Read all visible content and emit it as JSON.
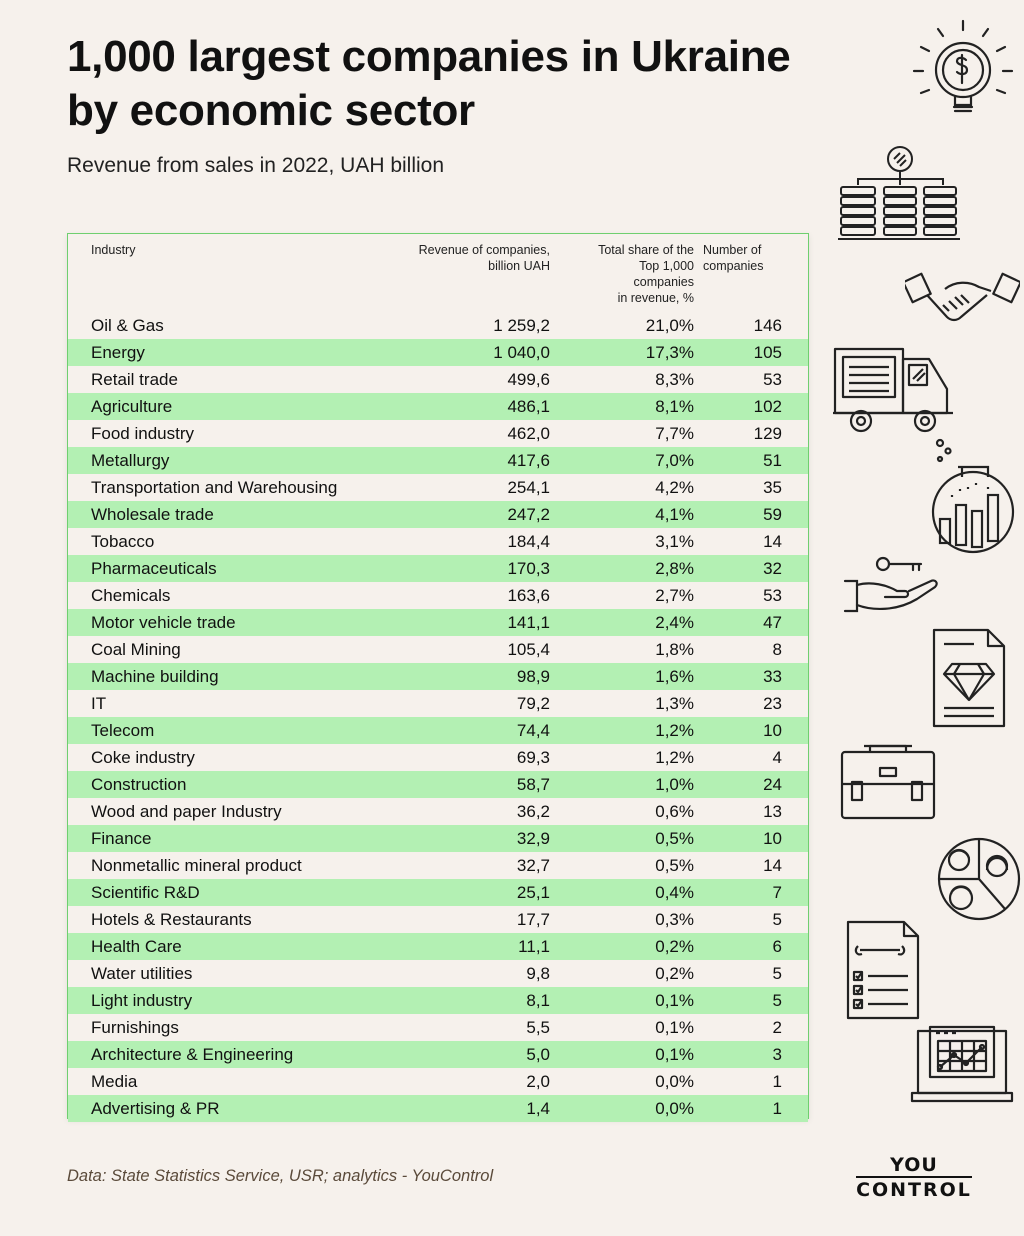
{
  "title": "1,000 largest companies in Ukraine by economic sector",
  "subtitle": "Revenue from sales in 2022, UAH billion",
  "table": {
    "headers": {
      "industry": "Industry",
      "revenue": "Revenue of companies, billion UAH",
      "share": "Total share of the Top 1,000 companies in revenue, %",
      "number": "Number of companies"
    },
    "rows": [
      {
        "industry": "Oil & Gas",
        "revenue": "1 259,2",
        "share": "21,0%",
        "number": "146"
      },
      {
        "industry": "Energy",
        "revenue": "1 040,0",
        "share": "17,3%",
        "number": "105"
      },
      {
        "industry": "Retail trade",
        "revenue": "499,6",
        "share": "8,3%",
        "number": "53"
      },
      {
        "industry": "Agriculture",
        "revenue": "486,1",
        "share": "8,1%",
        "number": "102"
      },
      {
        "industry": "Food industry",
        "revenue": "462,0",
        "share": "7,7%",
        "number": "129"
      },
      {
        "industry": "Metallurgy",
        "revenue": "417,6",
        "share": "7,0%",
        "number": "51"
      },
      {
        "industry": "Transportation and Warehousing",
        "revenue": "254,1",
        "share": "4,2%",
        "number": "35"
      },
      {
        "industry": "Wholesale trade",
        "revenue": "247,2",
        "share": "4,1%",
        "number": "59"
      },
      {
        "industry": "Tobacco",
        "revenue": "184,4",
        "share": "3,1%",
        "number": "14"
      },
      {
        "industry": "Pharmaceuticals",
        "revenue": "170,3",
        "share": "2,8%",
        "number": "32"
      },
      {
        "industry": "Chemicals",
        "revenue": "163,6",
        "share": "2,7%",
        "number": "53"
      },
      {
        "industry": "Motor vehicle trade",
        "revenue": "141,1",
        "share": "2,4%",
        "number": "47"
      },
      {
        "industry": "Coal Mining",
        "revenue": "105,4",
        "share": "1,8%",
        "number": "8"
      },
      {
        "industry": "Machine building",
        "revenue": "98,9",
        "share": "1,6%",
        "number": "33"
      },
      {
        "industry": "IT",
        "revenue": "79,2",
        "share": "1,3%",
        "number": "23"
      },
      {
        "industry": "Telecom",
        "revenue": "74,4",
        "share": "1,2%",
        "number": "10"
      },
      {
        "industry": "Coke industry",
        "revenue": "69,3",
        "share": "1,2%",
        "number": "4"
      },
      {
        "industry": "Construction",
        "revenue": "58,7",
        "share": "1,0%",
        "number": "24"
      },
      {
        "industry": "Wood and paper Industry",
        "revenue": "36,2",
        "share": "0,6%",
        "number": "13"
      },
      {
        "industry": "Finance",
        "revenue": "32,9",
        "share": "0,5%",
        "number": "10"
      },
      {
        "industry": "Nonmetallic mineral product",
        "revenue": "32,7",
        "share": "0,5%",
        "number": "14"
      },
      {
        "industry": "Scientific R&D",
        "revenue": "25,1",
        "share": "0,4%",
        "number": "7"
      },
      {
        "industry": "Hotels & Restaurants",
        "revenue": "17,7",
        "share": "0,3%",
        "number": "5"
      },
      {
        "industry": "Health Care",
        "revenue": "11,1",
        "share": "0,2%",
        "number": "6"
      },
      {
        "industry": "Water utilities",
        "revenue": "9,8",
        "share": "0,2%",
        "number": "5"
      },
      {
        "industry": "Light industry",
        "revenue": "8,1",
        "share": "0,1%",
        "number": "5"
      },
      {
        "industry": "Furnishings",
        "revenue": "5,5",
        "share": "0,1%",
        "number": "2"
      },
      {
        "industry": "Architecture & Engineering",
        "revenue": "5,0",
        "share": "0,1%",
        "number": "3"
      },
      {
        "industry": "Media",
        "revenue": "2,0",
        "share": "0,0%",
        "number": "1"
      },
      {
        "industry": "Advertising & PR",
        "revenue": "1,4",
        "share": "0,0%",
        "number": "1"
      }
    ]
  },
  "source": "Data: State Statistics Service, USR; analytics - YouControl",
  "logo": {
    "line1": "YOU",
    "line2": "CONTROL"
  },
  "colors": {
    "background": "#f6f1ec",
    "row_highlight": "#b3f0b3",
    "table_border": "#6fcf6f"
  },
  "icons": [
    "lightbulb-dollar-icon",
    "coin-stacks-icon",
    "handshake-icon",
    "truck-icon",
    "flask-chart-icon",
    "hand-key-icon",
    "diamond-document-icon",
    "briefcase-icon",
    "team-pie-icon",
    "checklist-wrench-icon",
    "laptop-chart-icon"
  ]
}
